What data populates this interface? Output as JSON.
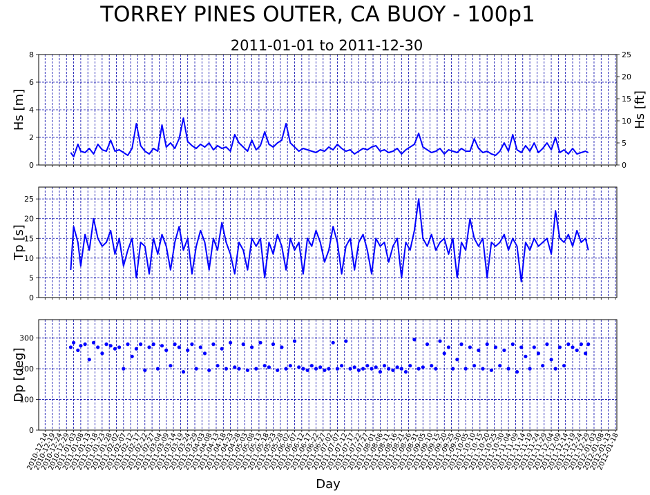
{
  "figure": {
    "title": "TORREY PINES OUTER, CA BUOY - 100p1",
    "subtitle": "2011-01-01 to 2011-12-30",
    "xlabel": "Day"
  },
  "colors": {
    "series": "#0000ff",
    "grid": "#0000aa",
    "axis": "#000000"
  },
  "x_ticks": [
    "2010-12-14",
    "2010-12-19",
    "2010-12-24",
    "2010-12-29",
    "2011-01-03",
    "2011-01-08",
    "2011-01-13",
    "2011-01-18",
    "2011-01-23",
    "2011-01-28",
    "2011-02-02",
    "2011-02-07",
    "2011-02-12",
    "2011-02-17",
    "2011-02-22",
    "2011-02-27",
    "2011-03-04",
    "2011-03-09",
    "2011-03-14",
    "2011-03-19",
    "2011-03-24",
    "2011-03-29",
    "2011-04-03",
    "2011-04-08",
    "2011-04-13",
    "2011-04-18",
    "2011-04-23",
    "2011-04-28",
    "2011-05-03",
    "2011-05-08",
    "2011-05-13",
    "2011-05-18",
    "2011-05-23",
    "2011-05-28",
    "2011-06-02",
    "2011-06-07",
    "2011-06-12",
    "2011-06-17",
    "2011-06-22",
    "2011-06-27",
    "2011-07-02",
    "2011-07-07",
    "2011-07-12",
    "2011-07-17",
    "2011-07-22",
    "2011-07-27",
    "2011-08-01",
    "2011-08-06",
    "2011-08-11",
    "2011-08-16",
    "2011-08-21",
    "2011-08-26",
    "2011-08-31",
    "2011-09-05",
    "2011-09-10",
    "2011-09-15",
    "2011-09-20",
    "2011-09-25",
    "2011-09-30",
    "2011-10-05",
    "2011-10-10",
    "2011-10-15",
    "2011-10-20",
    "2011-10-25",
    "2011-10-30",
    "2011-11-04",
    "2011-11-09",
    "2011-11-14",
    "2011-11-19",
    "2011-11-24",
    "2011-11-29",
    "2011-12-04",
    "2011-12-09",
    "2011-12-14",
    "2011-12-19",
    "2011-12-24",
    "2011-12-29",
    "2012-01-03",
    "2012-01-08",
    "2012-01-13",
    "2012-01-18"
  ],
  "chart_data": [
    {
      "type": "line",
      "ylabel": "Hs [m]",
      "ylabel_right": "Hs [ft]",
      "ylim": [
        0,
        8
      ],
      "yticks": [
        "0",
        "2",
        "4",
        "6",
        "8"
      ],
      "ylim_right": [
        0,
        25
      ],
      "yticks_right": [
        "0",
        "5",
        "10",
        "15",
        "20",
        "25"
      ],
      "grid": true,
      "x": [
        "2011-01-01",
        "2011-01-03",
        "2011-01-06",
        "2011-01-08",
        "2011-01-11",
        "2011-01-14",
        "2011-01-17",
        "2011-01-20",
        "2011-01-23",
        "2011-01-26",
        "2011-01-29",
        "2011-02-01",
        "2011-02-04",
        "2011-02-07",
        "2011-02-10",
        "2011-02-13",
        "2011-02-16",
        "2011-02-19",
        "2011-02-22",
        "2011-02-25",
        "2011-02-28",
        "2011-03-03",
        "2011-03-06",
        "2011-03-09",
        "2011-03-12",
        "2011-03-15",
        "2011-03-18",
        "2011-03-21",
        "2011-03-24",
        "2011-03-27",
        "2011-03-30",
        "2011-04-02",
        "2011-04-05",
        "2011-04-08",
        "2011-04-11",
        "2011-04-14",
        "2011-04-17",
        "2011-04-20",
        "2011-04-23",
        "2011-04-26",
        "2011-04-29",
        "2011-05-02",
        "2011-05-05",
        "2011-05-08",
        "2011-05-11",
        "2011-05-14",
        "2011-05-17",
        "2011-05-20",
        "2011-05-23",
        "2011-05-26",
        "2011-05-29",
        "2011-06-01",
        "2011-06-04",
        "2011-06-07",
        "2011-06-10",
        "2011-06-13",
        "2011-06-16",
        "2011-06-19",
        "2011-06-22",
        "2011-06-25",
        "2011-06-28",
        "2011-07-01",
        "2011-07-04",
        "2011-07-07",
        "2011-07-10",
        "2011-07-13",
        "2011-07-16",
        "2011-07-19",
        "2011-07-22",
        "2011-07-25",
        "2011-07-28",
        "2011-07-31",
        "2011-08-03",
        "2011-08-06",
        "2011-08-09",
        "2011-08-12",
        "2011-08-15",
        "2011-08-18",
        "2011-08-21",
        "2011-08-24",
        "2011-08-27",
        "2011-08-30",
        "2011-09-02",
        "2011-09-05",
        "2011-09-08",
        "2011-09-11",
        "2011-09-14",
        "2011-09-17",
        "2011-09-20",
        "2011-09-23",
        "2011-09-26",
        "2011-09-29",
        "2011-10-02",
        "2011-10-05",
        "2011-10-08",
        "2011-10-11",
        "2011-10-14",
        "2011-10-17",
        "2011-10-20",
        "2011-10-23",
        "2011-10-26",
        "2011-10-29",
        "2011-11-01",
        "2011-11-04",
        "2011-11-07",
        "2011-11-10",
        "2011-11-13",
        "2011-11-16",
        "2011-11-19",
        "2011-11-22",
        "2011-11-25",
        "2011-11-28",
        "2011-12-01",
        "2011-12-04",
        "2011-12-07",
        "2011-12-10",
        "2011-12-13",
        "2011-12-16",
        "2011-12-19",
        "2011-12-22",
        "2011-12-25",
        "2011-12-28",
        "2011-12-30"
      ],
      "values": [
        0.9,
        0.6,
        1.5,
        1.0,
        0.9,
        1.2,
        0.8,
        1.5,
        1.1,
        1.0,
        1.8,
        1.0,
        1.1,
        0.9,
        0.7,
        1.2,
        3.0,
        1.4,
        1.0,
        0.8,
        1.2,
        1.0,
        2.9,
        1.3,
        1.6,
        1.2,
        1.9,
        3.4,
        1.7,
        1.4,
        1.2,
        1.5,
        1.3,
        1.6,
        1.1,
        1.4,
        1.2,
        1.3,
        1.0,
        2.2,
        1.6,
        1.3,
        1.0,
        1.8,
        1.1,
        1.4,
        2.4,
        1.5,
        1.3,
        1.6,
        1.8,
        3.0,
        1.6,
        1.3,
        1.0,
        1.2,
        1.1,
        1.0,
        0.9,
        1.1,
        1.0,
        1.3,
        1.1,
        1.5,
        1.2,
        1.0,
        1.1,
        0.8,
        1.0,
        1.2,
        1.1,
        1.3,
        1.4,
        1.0,
        1.1,
        0.9,
        1.0,
        1.2,
        0.8,
        1.1,
        1.3,
        1.5,
        2.3,
        1.3,
        1.1,
        0.9,
        1.0,
        1.2,
        0.8,
        1.1,
        1.0,
        0.9,
        1.2,
        1.0,
        1.0,
        1.9,
        1.2,
        0.9,
        1.0,
        0.8,
        0.7,
        1.0,
        1.6,
        1.0,
        2.2,
        1.1,
        0.9,
        1.4,
        1.0,
        1.6,
        0.9,
        1.2,
        1.6,
        1.1,
        2.0,
        0.9,
        1.1,
        0.8,
        1.2,
        0.8,
        0.9,
        1.0,
        0.9
      ]
    },
    {
      "type": "line",
      "ylabel": "Tp [s]",
      "ylim": [
        0,
        28
      ],
      "yticks": [
        "0",
        "5",
        "10",
        "15",
        "20",
        "25"
      ],
      "grid": true,
      "x": [
        "2011-01-01",
        "2011-01-03",
        "2011-01-06",
        "2011-01-08",
        "2011-01-11",
        "2011-01-14",
        "2011-01-17",
        "2011-01-20",
        "2011-01-23",
        "2011-01-26",
        "2011-01-29",
        "2011-02-01",
        "2011-02-04",
        "2011-02-07",
        "2011-02-10",
        "2011-02-13",
        "2011-02-16",
        "2011-02-19",
        "2011-02-22",
        "2011-02-25",
        "2011-02-28",
        "2011-03-03",
        "2011-03-06",
        "2011-03-09",
        "2011-03-12",
        "2011-03-15",
        "2011-03-18",
        "2011-03-21",
        "2011-03-24",
        "2011-03-27",
        "2011-03-30",
        "2011-04-02",
        "2011-04-05",
        "2011-04-08",
        "2011-04-11",
        "2011-04-14",
        "2011-04-17",
        "2011-04-20",
        "2011-04-23",
        "2011-04-26",
        "2011-04-29",
        "2011-05-02",
        "2011-05-05",
        "2011-05-08",
        "2011-05-11",
        "2011-05-14",
        "2011-05-17",
        "2011-05-20",
        "2011-05-23",
        "2011-05-26",
        "2011-05-29",
        "2011-06-01",
        "2011-06-04",
        "2011-06-07",
        "2011-06-10",
        "2011-06-13",
        "2011-06-16",
        "2011-06-19",
        "2011-06-22",
        "2011-06-25",
        "2011-06-28",
        "2011-07-01",
        "2011-07-04",
        "2011-07-07",
        "2011-07-10",
        "2011-07-13",
        "2011-07-16",
        "2011-07-19",
        "2011-07-22",
        "2011-07-25",
        "2011-07-28",
        "2011-07-31",
        "2011-08-03",
        "2011-08-06",
        "2011-08-09",
        "2011-08-12",
        "2011-08-15",
        "2011-08-18",
        "2011-08-21",
        "2011-08-24",
        "2011-08-27",
        "2011-08-30",
        "2011-09-02",
        "2011-09-05",
        "2011-09-08",
        "2011-09-11",
        "2011-09-14",
        "2011-09-17",
        "2011-09-20",
        "2011-09-23",
        "2011-09-26",
        "2011-09-29",
        "2011-10-02",
        "2011-10-05",
        "2011-10-08",
        "2011-10-11",
        "2011-10-14",
        "2011-10-17",
        "2011-10-20",
        "2011-10-23",
        "2011-10-26",
        "2011-10-29",
        "2011-11-01",
        "2011-11-04",
        "2011-11-07",
        "2011-11-10",
        "2011-11-13",
        "2011-11-16",
        "2011-11-19",
        "2011-11-22",
        "2011-11-25",
        "2011-11-28",
        "2011-12-01",
        "2011-12-04",
        "2011-12-07",
        "2011-12-10",
        "2011-12-13",
        "2011-12-16",
        "2011-12-19",
        "2011-12-22",
        "2011-12-25",
        "2011-12-28",
        "2011-12-30"
      ],
      "values": [
        7,
        18,
        14,
        8,
        16,
        12,
        20,
        15,
        13,
        14,
        17,
        11,
        15,
        8,
        12,
        15,
        5,
        14,
        13,
        6,
        15,
        11,
        16,
        13,
        7,
        14,
        18,
        12,
        15,
        6,
        13,
        17,
        14,
        7,
        15,
        12,
        19,
        14,
        11,
        6,
        14,
        12,
        7,
        15,
        13,
        15,
        5,
        14,
        11,
        16,
        13,
        7,
        15,
        12,
        14,
        6,
        15,
        13,
        17,
        14,
        9,
        12,
        18,
        14,
        6,
        13,
        15,
        7,
        14,
        16,
        12,
        6,
        15,
        13,
        14,
        9,
        13,
        15,
        5,
        14,
        12,
        17,
        25,
        15,
        13,
        16,
        12,
        14,
        15,
        11,
        15,
        5,
        14,
        12,
        20,
        15,
        13,
        15,
        5,
        14,
        13,
        14,
        16,
        12,
        15,
        13,
        4,
        14,
        12,
        15,
        13,
        14,
        15,
        11,
        22,
        15,
        14,
        16,
        13,
        17,
        14,
        15,
        12
      ]
    },
    {
      "type": "scatter",
      "ylabel": "Dp [deg]",
      "ylim": [
        0,
        360
      ],
      "yticks": [
        "0",
        "100",
        "200",
        "300"
      ],
      "grid": true,
      "x": [
        "2011-01-01",
        "2011-01-03",
        "2011-01-06",
        "2011-01-08",
        "2011-01-11",
        "2011-01-14",
        "2011-01-17",
        "2011-01-20",
        "2011-01-23",
        "2011-01-26",
        "2011-01-29",
        "2011-02-01",
        "2011-02-04",
        "2011-02-07",
        "2011-02-10",
        "2011-02-13",
        "2011-02-16",
        "2011-02-19",
        "2011-02-22",
        "2011-02-25",
        "2011-02-28",
        "2011-03-03",
        "2011-03-06",
        "2011-03-09",
        "2011-03-12",
        "2011-03-15",
        "2011-03-18",
        "2011-03-21",
        "2011-03-24",
        "2011-03-27",
        "2011-03-30",
        "2011-04-02",
        "2011-04-05",
        "2011-04-08",
        "2011-04-11",
        "2011-04-14",
        "2011-04-17",
        "2011-04-20",
        "2011-04-23",
        "2011-04-26",
        "2011-04-29",
        "2011-05-02",
        "2011-05-05",
        "2011-05-08",
        "2011-05-11",
        "2011-05-14",
        "2011-05-17",
        "2011-05-20",
        "2011-05-23",
        "2011-05-26",
        "2011-05-29",
        "2011-06-01",
        "2011-06-04",
        "2011-06-07",
        "2011-06-10",
        "2011-06-13",
        "2011-06-16",
        "2011-06-19",
        "2011-06-22",
        "2011-06-25",
        "2011-06-28",
        "2011-07-01",
        "2011-07-04",
        "2011-07-07",
        "2011-07-10",
        "2011-07-13",
        "2011-07-16",
        "2011-07-19",
        "2011-07-22",
        "2011-07-25",
        "2011-07-28",
        "2011-07-31",
        "2011-08-03",
        "2011-08-06",
        "2011-08-09",
        "2011-08-12",
        "2011-08-15",
        "2011-08-18",
        "2011-08-21",
        "2011-08-24",
        "2011-08-27",
        "2011-08-30",
        "2011-09-02",
        "2011-09-05",
        "2011-09-08",
        "2011-09-11",
        "2011-09-14",
        "2011-09-17",
        "2011-09-20",
        "2011-09-23",
        "2011-09-26",
        "2011-09-29",
        "2011-10-02",
        "2011-10-05",
        "2011-10-08",
        "2011-10-11",
        "2011-10-14",
        "2011-10-17",
        "2011-10-20",
        "2011-10-23",
        "2011-10-26",
        "2011-10-29",
        "2011-11-01",
        "2011-11-04",
        "2011-11-07",
        "2011-11-10",
        "2011-11-13",
        "2011-11-16",
        "2011-11-19",
        "2011-11-22",
        "2011-11-25",
        "2011-11-28",
        "2011-12-01",
        "2011-12-04",
        "2011-12-07",
        "2011-12-10",
        "2011-12-13",
        "2011-12-16",
        "2011-12-19",
        "2011-12-22",
        "2011-12-25",
        "2011-12-28",
        "2011-12-30"
      ],
      "values": [
        270,
        285,
        260,
        275,
        280,
        230,
        285,
        270,
        250,
        280,
        275,
        265,
        270,
        200,
        280,
        240,
        265,
        280,
        195,
        270,
        280,
        200,
        275,
        260,
        210,
        280,
        270,
        190,
        260,
        280,
        200,
        270,
        250,
        195,
        280,
        210,
        265,
        200,
        285,
        205,
        200,
        280,
        195,
        270,
        200,
        285,
        210,
        205,
        280,
        195,
        270,
        200,
        210,
        290,
        205,
        200,
        195,
        210,
        200,
        205,
        195,
        200,
        285,
        200,
        210,
        290,
        200,
        205,
        195,
        200,
        210,
        200,
        205,
        190,
        210,
        200,
        195,
        205,
        200,
        190,
        210,
        295,
        200,
        205,
        280,
        210,
        200,
        290,
        250,
        270,
        200,
        230,
        280,
        200,
        270,
        210,
        260,
        200,
        280,
        195,
        270,
        210,
        260,
        200,
        280,
        190,
        270,
        240,
        200,
        270,
        250,
        210,
        280,
        230,
        200,
        270,
        210,
        280,
        270,
        260,
        280,
        250,
        280
      ]
    }
  ]
}
